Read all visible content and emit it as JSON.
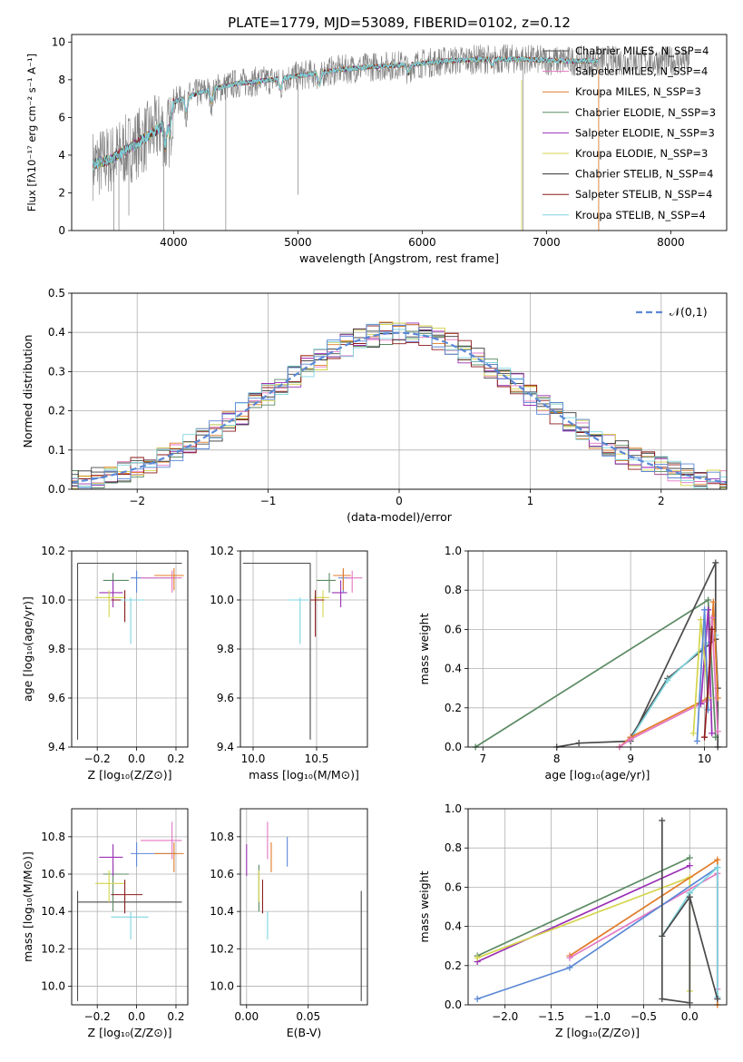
{
  "chart_data": [
    {
      "type": "line",
      "title": "PLATE=1779, MJD=53089, FIBERID=0102, z=0.12",
      "xlabel": "wavelength [Angstrom, rest frame]",
      "ylabel": "Flux [fλ10⁻¹⁷ erg cm⁻² s⁻¹ A⁻¹]",
      "xlim": [
        3180,
        8450
      ],
      "ylim": [
        0,
        10.4
      ],
      "xticks": [
        "4000",
        "5000",
        "6000",
        "7000",
        "8000"
      ],
      "yticks": [
        "0",
        "2",
        "4",
        "6",
        "8",
        "10"
      ],
      "grid": false,
      "legend": "top-right",
      "series": [
        {
          "name": "Chabrier MILES, N_SSP=4",
          "color": "#4a4a4a"
        },
        {
          "name": "Salpeter MILES, N_SSP=4",
          "color": "#e377c2"
        },
        {
          "name": "Kroupa MILES, N_SSP=3",
          "color": "#e07b28"
        },
        {
          "name": "Chabrier ELODIE, N_SSP=3",
          "color": "#5b8a63"
        },
        {
          "name": "Salpeter ELODIE, N_SSP=3",
          "color": "#9b30b5"
        },
        {
          "name": "Kroupa ELODIE, N_SSP=3",
          "color": "#d4d44c"
        },
        {
          "name": "Chabrier STELIB, N_SSP=4",
          "color": "#333333"
        },
        {
          "name": "Salpeter STELIB, N_SSP=4",
          "color": "#8b1a1a"
        },
        {
          "name": "Kroupa STELIB, N_SSP=4",
          "color": "#7fd6e0"
        }
      ],
      "continuum": {
        "x": [
          3350,
          3500,
          3700,
          3900,
          4000,
          4200,
          4500,
          4800,
          5000,
          5300,
          5600,
          5900,
          6200,
          6500,
          6800,
          7100,
          7400
        ],
        "y": [
          3.5,
          3.8,
          4.6,
          5.5,
          6.8,
          7.3,
          7.8,
          8.0,
          8.2,
          8.5,
          8.7,
          8.8,
          9.0,
          9.1,
          9.1,
          9.0,
          9.0
        ]
      }
    },
    {
      "type": "area",
      "xlabel": "(data-model)/error",
      "ylabel": "Normed distribution",
      "xlim": [
        -2.5,
        2.5
      ],
      "ylim": [
        0,
        0.5
      ],
      "xticks": [
        "−2",
        "−1",
        "0",
        "1",
        "2"
      ],
      "yticks": [
        "0.0",
        "0.1",
        "0.2",
        "0.3",
        "0.4",
        "0.5"
      ],
      "grid": true,
      "legend": "top-right",
      "legend_label": "𝒩(0,1)",
      "reference_curve": {
        "mean": 0,
        "std": 1,
        "color": "#5b88d6"
      },
      "histogram_colors": [
        "#4a4a4a",
        "#e377c2",
        "#e07b28",
        "#5b8a63",
        "#9b30b5",
        "#d4d44c",
        "#333333",
        "#8b1a1a",
        "#7fd6e0",
        "#5b88d6"
      ]
    },
    {
      "type": "scatter",
      "xlabel": "Z [log₁₀(Z/Z⊙)]",
      "ylabel": "age  [log₁₀(age/yr)]",
      "xlim": [
        -0.33,
        0.26
      ],
      "ylim": [
        9.4,
        10.2
      ],
      "xticks": [
        "−0.2",
        "0.0",
        "0.2"
      ],
      "yticks": [
        "9.4",
        "9.6",
        "9.8",
        "10.0",
        "10.2"
      ],
      "grid": true,
      "points": [
        {
          "x": -0.3,
          "y": 10.15,
          "xerr": [
            0.0,
            0.53
          ],
          "yerr": [
            0.72,
            0.0
          ],
          "color": "#4a4a4a"
        },
        {
          "x": -0.12,
          "y": 10.08,
          "xerr": [
            0.05,
            0.08
          ],
          "yerr": [
            0.05,
            0.03
          ],
          "color": "#5b8a63"
        },
        {
          "x": -0.12,
          "y": 10.03,
          "xerr": [
            0.07,
            0.05
          ],
          "yerr": [
            0.06,
            0.05
          ],
          "color": "#9b30b5"
        },
        {
          "x": -0.14,
          "y": 10.01,
          "xerr": [
            0.07,
            0.08
          ],
          "yerr": [
            0.08,
            0.03
          ],
          "color": "#d4d44c"
        },
        {
          "x": -0.06,
          "y": 10.0,
          "xerr": [
            0.07,
            0.09
          ],
          "yerr": [
            0.09,
            0.04
          ],
          "color": "#8b1a1a"
        },
        {
          "x": -0.03,
          "y": 10.0,
          "xerr": [
            0.05,
            0.07
          ],
          "yerr": [
            0.18,
            0.01
          ],
          "color": "#7fd6e0"
        },
        {
          "x": 0.0,
          "y": 10.09,
          "xerr": [
            0.03,
            0.2
          ],
          "yerr": [
            0.06,
            0.03
          ],
          "color": "#5b88d6"
        },
        {
          "x": 0.18,
          "y": 10.09,
          "xerr": [
            0.16,
            0.05
          ],
          "yerr": [
            0.06,
            0.03
          ],
          "color": "#e377c2"
        },
        {
          "x": 0.19,
          "y": 10.1,
          "xerr": [
            0.1,
            0.05
          ],
          "yerr": [
            0.06,
            0.03
          ],
          "color": "#e07b28"
        }
      ]
    },
    {
      "type": "scatter",
      "xlabel": "mass [log₁₀(M/M⊙)]",
      "ylabel": "",
      "xlim": [
        9.9,
        10.9
      ],
      "ylim": [
        9.4,
        10.2
      ],
      "xticks": [
        "10.0",
        "10.5"
      ],
      "yticks": [
        "9.4",
        "9.6",
        "9.8",
        "10.0",
        "10.2"
      ],
      "grid": true,
      "points": [
        {
          "x": 10.45,
          "y": 10.15,
          "xerr": [
            0.53,
            0.0
          ],
          "yerr": [
            0.72,
            0.0
          ],
          "color": "#4a4a4a"
        },
        {
          "x": 10.6,
          "y": 10.08,
          "xerr": [
            0.1,
            0.05
          ],
          "yerr": [
            0.05,
            0.03
          ],
          "color": "#5b8a63"
        },
        {
          "x": 10.69,
          "y": 10.03,
          "xerr": [
            0.07,
            0.05
          ],
          "yerr": [
            0.06,
            0.05
          ],
          "color": "#9b30b5"
        },
        {
          "x": 10.55,
          "y": 10.01,
          "xerr": [
            0.07,
            0.05
          ],
          "yerr": [
            0.08,
            0.03
          ],
          "color": "#d4d44c"
        },
        {
          "x": 10.49,
          "y": 10.0,
          "xerr": [
            0.07,
            0.07
          ],
          "yerr": [
            0.15,
            0.04
          ],
          "color": "#8b1a1a"
        },
        {
          "x": 10.37,
          "y": 10.0,
          "xerr": [
            0.1,
            0.08
          ],
          "yerr": [
            0.18,
            0.01
          ],
          "color": "#7fd6e0"
        },
        {
          "x": 10.71,
          "y": 10.09,
          "xerr": [
            0.04,
            0.06
          ],
          "yerr": [
            0.06,
            0.03
          ],
          "color": "#5b88d6"
        },
        {
          "x": 10.78,
          "y": 10.09,
          "xerr": [
            0.05,
            0.08
          ],
          "yerr": [
            0.06,
            0.03
          ],
          "color": "#e377c2"
        },
        {
          "x": 10.71,
          "y": 10.1,
          "xerr": [
            0.08,
            0.06
          ],
          "yerr": [
            0.06,
            0.03
          ],
          "color": "#e07b28"
        }
      ]
    },
    {
      "type": "line",
      "xlabel": "age  [log₁₀(age/yr)]",
      "ylabel": "mass weight",
      "xlim": [
        6.8,
        10.3
      ],
      "ylim": [
        0,
        1.0
      ],
      "xticks": [
        "7",
        "8",
        "9",
        "10"
      ],
      "yticks": [
        "0.0",
        "0.2",
        "0.4",
        "0.6",
        "0.8",
        "1.0"
      ],
      "grid": true,
      "series": [
        {
          "color": "#5b8a63",
          "x": [
            6.9,
            10.05,
            10.15
          ],
          "y": [
            0.0,
            0.75,
            0.05
          ]
        },
        {
          "color": "#4a4a4a",
          "x": [
            8.0,
            8.3,
            9.0,
            10.15,
            10.15,
            10.18,
            10.18
          ],
          "y": [
            0.0,
            0.02,
            0.03,
            0.94,
            0.55,
            0.3,
            0.0
          ]
        },
        {
          "color": "#4a4a4a",
          "x": [
            9.0,
            9.5,
            10.15
          ],
          "y": [
            0.05,
            0.35,
            0.55
          ]
        },
        {
          "color": "#7fd6e0",
          "x": [
            9.0,
            9.5,
            10.15
          ],
          "y": [
            0.04,
            0.34,
            0.57
          ]
        },
        {
          "color": "#e07b28",
          "x": [
            8.85,
            9.0,
            10.05,
            10.12,
            10.18
          ],
          "y": [
            0.0,
            0.05,
            0.25,
            0.74,
            0.25
          ]
        },
        {
          "color": "#e377c2",
          "x": [
            8.85,
            9.0,
            10.05,
            10.1,
            10.18
          ],
          "y": [
            0.0,
            0.04,
            0.24,
            0.66,
            0.08
          ]
        },
        {
          "color": "#9b30b5",
          "x": [
            9.95,
            10.05,
            10.1
          ],
          "y": [
            0.22,
            0.7,
            0.07
          ]
        },
        {
          "color": "#d4d44c",
          "x": [
            9.85,
            9.95,
            10.05
          ],
          "y": [
            0.07,
            0.65,
            0.25
          ]
        },
        {
          "color": "#5b88d6",
          "x": [
            9.9,
            10.0,
            10.05
          ],
          "y": [
            0.03,
            0.7,
            0.19
          ]
        },
        {
          "color": "#8b1a1a",
          "x": [
            10.0,
            10.1
          ],
          "y": [
            0.05,
            0.6
          ]
        }
      ]
    },
    {
      "type": "scatter",
      "xlabel": "Z [log₁₀(Z/Z⊙)]",
      "ylabel": "mass [log₁₀(M/M⊙)]",
      "xlim": [
        -0.33,
        0.26
      ],
      "ylim": [
        9.9,
        10.95
      ],
      "xticks": [
        "−0.2",
        "0.0",
        "0.2"
      ],
      "yticks": [
        "10.0",
        "10.2",
        "10.4",
        "10.6",
        "10.8"
      ],
      "grid": true,
      "points": [
        {
          "x": -0.3,
          "y": 10.45,
          "xerr": [
            0.0,
            0.53
          ],
          "yerr": [
            0.53,
            0.06
          ],
          "color": "#4a4a4a"
        },
        {
          "x": -0.12,
          "y": 10.6,
          "xerr": [
            0.05,
            0.08
          ],
          "yerr": [
            0.2,
            0.05
          ],
          "color": "#5b8a63"
        },
        {
          "x": -0.12,
          "y": 10.69,
          "xerr": [
            0.07,
            0.05
          ],
          "yerr": [
            0.1,
            0.07
          ],
          "color": "#9b30b5"
        },
        {
          "x": -0.14,
          "y": 10.55,
          "xerr": [
            0.07,
            0.08
          ],
          "yerr": [
            0.1,
            0.07
          ],
          "color": "#d4d44c"
        },
        {
          "x": -0.06,
          "y": 10.49,
          "xerr": [
            0.07,
            0.09
          ],
          "yerr": [
            0.1,
            0.08
          ],
          "color": "#8b1a1a"
        },
        {
          "x": -0.03,
          "y": 10.37,
          "xerr": [
            0.1,
            0.09
          ],
          "yerr": [
            0.12,
            0.03
          ],
          "color": "#7fd6e0"
        },
        {
          "x": 0.0,
          "y": 10.71,
          "xerr": [
            0.03,
            0.2
          ],
          "yerr": [
            0.07,
            0.06
          ],
          "color": "#5b88d6"
        },
        {
          "x": 0.18,
          "y": 10.78,
          "xerr": [
            0.16,
            0.05
          ],
          "yerr": [
            0.1,
            0.1
          ],
          "color": "#e377c2"
        },
        {
          "x": 0.19,
          "y": 10.71,
          "xerr": [
            0.1,
            0.05
          ],
          "yerr": [
            0.1,
            0.06
          ],
          "color": "#e07b28"
        }
      ]
    },
    {
      "type": "scatter",
      "xlabel": "E(B-V)",
      "ylabel": "",
      "xlim": [
        -0.005,
        0.098
      ],
      "ylim": [
        9.9,
        10.95
      ],
      "xticks": [
        "0.00",
        "0.05"
      ],
      "yticks": [
        "10.0",
        "10.2",
        "10.4",
        "10.6",
        "10.8"
      ],
      "grid": true,
      "points": [
        {
          "x": 0.093,
          "y": 10.45,
          "yerr": [
            0.53,
            0.06
          ],
          "color": "#4a4a4a"
        },
        {
          "x": 0.01,
          "y": 10.6,
          "yerr": [
            0.2,
            0.05
          ],
          "color": "#5b8a63"
        },
        {
          "x": 0.0,
          "y": 10.69,
          "yerr": [
            0.1,
            0.07
          ],
          "color": "#9b30b5"
        },
        {
          "x": 0.01,
          "y": 10.55,
          "yerr": [
            0.1,
            0.07
          ],
          "color": "#d4d44c"
        },
        {
          "x": 0.013,
          "y": 10.49,
          "yerr": [
            0.1,
            0.08
          ],
          "color": "#8b1a1a"
        },
        {
          "x": 0.017,
          "y": 10.37,
          "yerr": [
            0.12,
            0.03
          ],
          "color": "#7fd6e0"
        },
        {
          "x": 0.033,
          "y": 10.71,
          "yerr": [
            0.07,
            0.09
          ],
          "color": "#5b88d6"
        },
        {
          "x": 0.017,
          "y": 10.78,
          "yerr": [
            0.1,
            0.1
          ],
          "color": "#e377c2"
        },
        {
          "x": 0.02,
          "y": 10.71,
          "yerr": [
            0.1,
            0.06
          ],
          "color": "#e07b28"
        }
      ]
    },
    {
      "type": "line",
      "xlabel": "Z [log₁₀(Z/Z⊙)]",
      "ylabel": "mass weight",
      "xlim": [
        -2.4,
        0.4
      ],
      "ylim": [
        0,
        1.0
      ],
      "xticks": [
        "−2.0",
        "−1.5",
        "−1.0",
        "−0.5",
        "0.0"
      ],
      "yticks": [
        "0.0",
        "0.2",
        "0.4",
        "0.6",
        "0.8",
        "1.0"
      ],
      "grid": true,
      "series": [
        {
          "color": "#5b8a63",
          "x": [
            -2.3,
            0.0
          ],
          "y": [
            0.25,
            0.75
          ]
        },
        {
          "color": "#9b30b5",
          "x": [
            -2.3,
            0.0
          ],
          "y": [
            0.22,
            0.71
          ]
        },
        {
          "color": "#d4d44c",
          "x": [
            -2.3,
            0.0,
            0.0
          ],
          "y": [
            0.24,
            0.65,
            0.07
          ]
        },
        {
          "color": "#e07b28",
          "x": [
            -1.3,
            0.3,
            0.3
          ],
          "y": [
            0.25,
            0.74,
            0.0
          ]
        },
        {
          "color": "#e377c2",
          "x": [
            -1.3,
            0.3,
            0.3
          ],
          "y": [
            0.24,
            0.67,
            0.08
          ]
        },
        {
          "color": "#5b88d6",
          "x": [
            -2.3,
            -1.3,
            0.3,
            0.3
          ],
          "y": [
            0.03,
            0.19,
            0.7,
            0.03
          ]
        },
        {
          "color": "#4a4a4a",
          "x": [
            -0.3,
            -0.3,
            0.0,
            0.0
          ],
          "y": [
            0.94,
            0.03,
            0.01,
            0.57
          ]
        },
        {
          "color": "#7fd6e0",
          "x": [
            -0.3,
            0.0,
            0.3,
            0.3
          ],
          "y": [
            0.35,
            0.57,
            0.7,
            0.04
          ]
        },
        {
          "color": "#4a4a4a",
          "x": [
            -0.3,
            0.0,
            0.3
          ],
          "y": [
            0.35,
            0.55,
            0.03
          ]
        }
      ]
    }
  ]
}
